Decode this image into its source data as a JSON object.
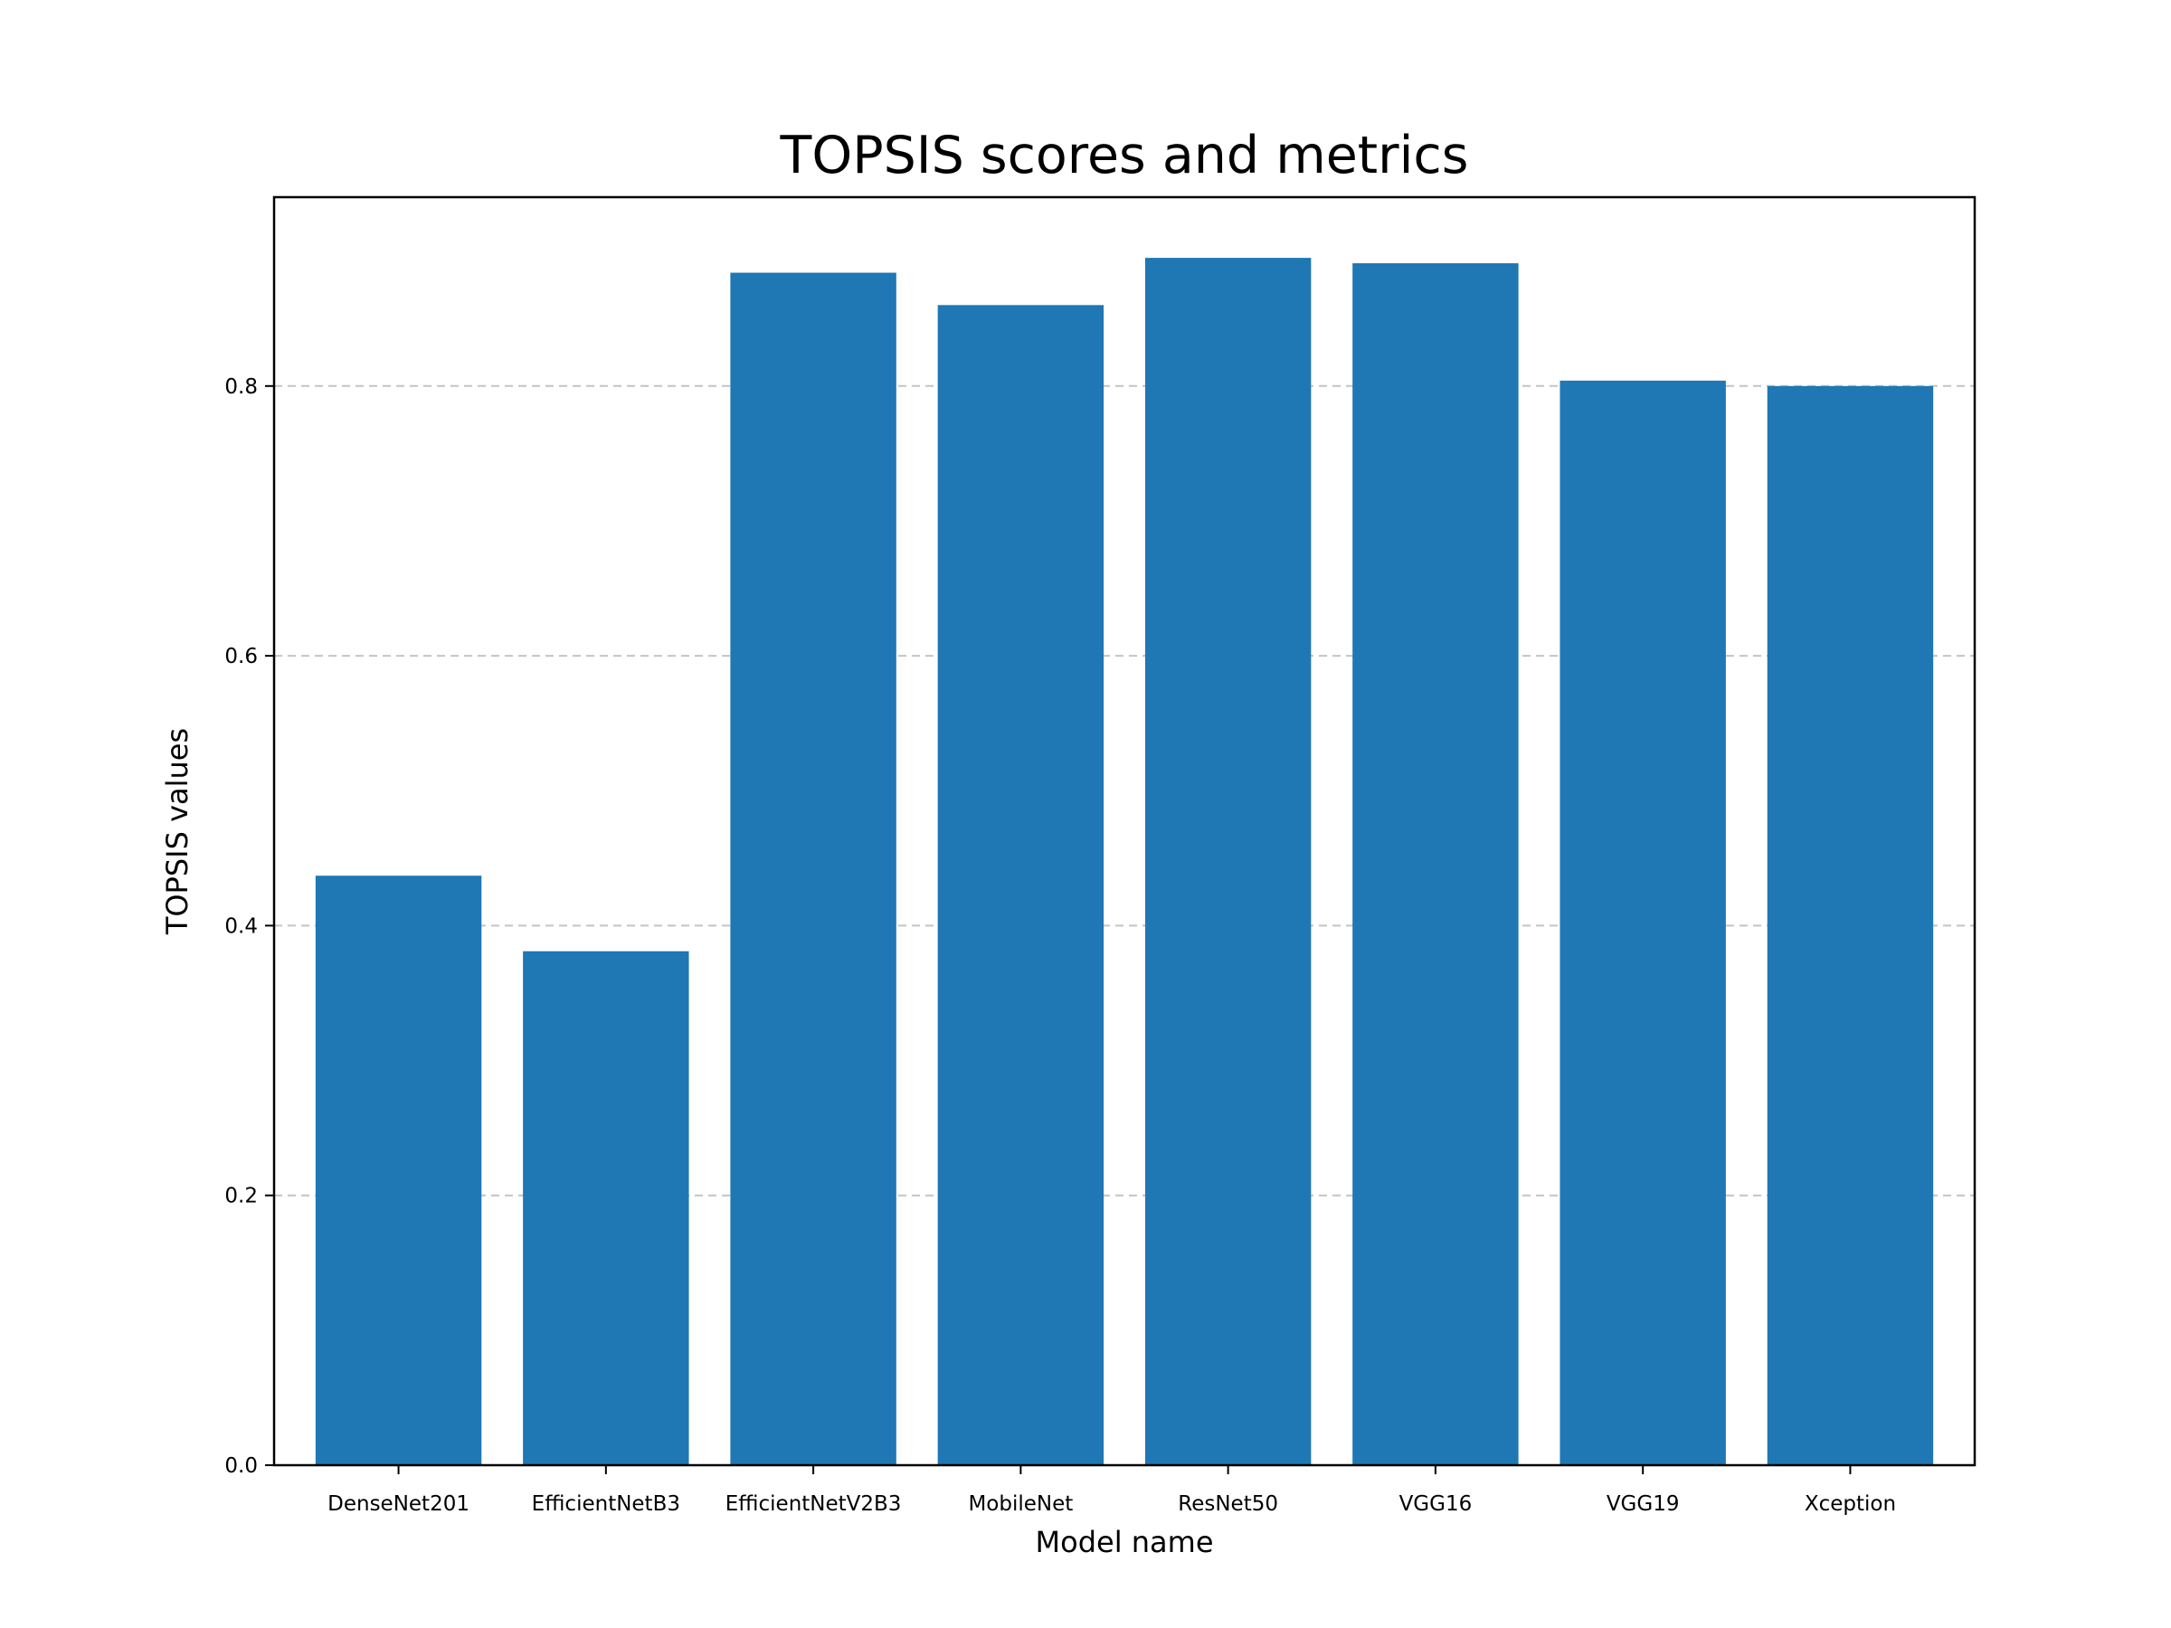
{
  "chart_data": {
    "type": "bar",
    "title": "TOPSIS scores and metrics",
    "xlabel": "Model name",
    "ylabel": "TOPSIS values",
    "categories": [
      "DenseNet201",
      "EfficientNetB3",
      "EfficientNetV2B3",
      "MobileNet",
      "ResNet50",
      "VGG16",
      "VGG19",
      "Xception"
    ],
    "values": [
      0.437,
      0.381,
      0.884,
      0.86,
      0.895,
      0.891,
      0.804,
      0.8
    ],
    "ylim": [
      0,
      0.94
    ],
    "yticks": [
      "0.0",
      "0.2",
      "0.4",
      "0.6",
      "0.8"
    ],
    "grid": "y-dashed",
    "bar_color": "#1f77b4",
    "grid_color": "#c4c4c4"
  }
}
